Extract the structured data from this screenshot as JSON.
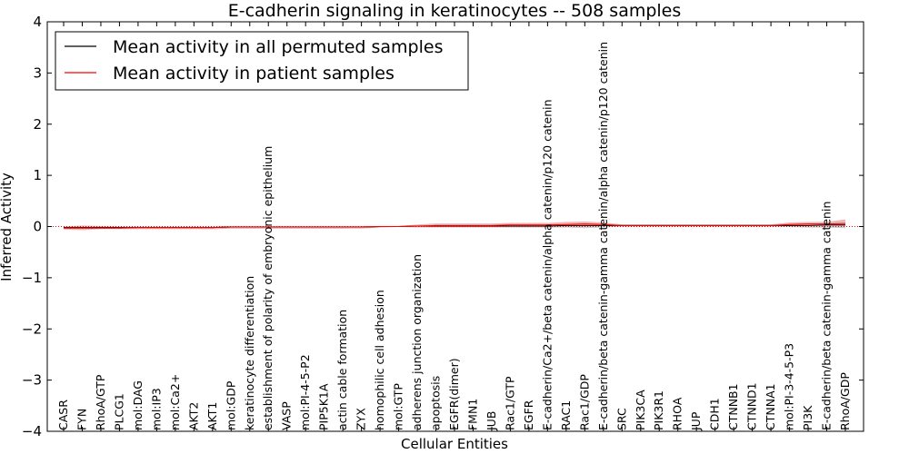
{
  "chart_data": {
    "type": "line",
    "title": "E-cadherin signaling in keratinocytes -- 508 samples",
    "xlabel": "Cellular Entities",
    "ylabel": "Inferred Activity",
    "ylim": [
      -4,
      4
    ],
    "yticks": [
      -4,
      -3,
      -2,
      -1,
      0,
      1,
      2,
      3,
      4
    ],
    "ytick_labels": [
      "−4",
      "−3",
      "−2",
      "−1",
      "0",
      "1",
      "2",
      "3",
      "4"
    ],
    "grid": false,
    "legend_position": "top-left",
    "categories": [
      "CASR",
      "FYN",
      "RhoA/GTP",
      "PLCG1",
      "mol:DAG",
      "mol:IP3",
      "mol:Ca2+",
      "AKT2",
      "AKT1",
      "mol:GDP",
      "keratinocyte differentiation",
      "establishment of polarity of embryonic epithelium",
      "VASP",
      "mol:PI-4-5-P2",
      "PIP5K1A",
      "actin cable formation",
      "ZYX",
      "homophilic cell adhesion",
      "mol:GTP",
      "adherens junction organization",
      "apoptosis",
      "EGFR(dimer)",
      "FMN1",
      "JUB",
      "Rac1/GTP",
      "EGFR",
      "E-cadherin/Ca2+/beta catenin/alpha catenin/p120 catenin",
      "RAC1",
      "Rac1/GDP",
      "E-cadherin/beta catenin-gamma catenin/alpha catenin/p120 catenin",
      "SRC",
      "PIK3CA",
      "PIK3R1",
      "RHOA",
      "JUP",
      "CDH1",
      "CTNNB1",
      "CTNND1",
      "CTNNA1",
      "mol:PI-3-4-5-P3",
      "PI3K",
      "E-cadherin/beta catenin-gamma catenin",
      "RhoA/GDP"
    ],
    "series": [
      {
        "name": "Mean activity in all permuted samples",
        "color": "#000000",
        "values": [
          -0.02,
          -0.02,
          -0.02,
          -0.02,
          -0.02,
          -0.02,
          -0.02,
          -0.02,
          -0.02,
          -0.01,
          -0.01,
          -0.01,
          -0.01,
          -0.01,
          -0.01,
          -0.01,
          -0.01,
          0.0,
          0.0,
          0.01,
          0.01,
          0.01,
          0.01,
          0.01,
          0.01,
          0.01,
          0.01,
          0.02,
          0.02,
          0.02,
          0.02,
          0.02,
          0.02,
          0.02,
          0.02,
          0.02,
          0.02,
          0.02,
          0.02,
          0.02,
          0.02,
          0.03,
          0.03
        ],
        "band_lower": [
          -0.04,
          -0.05,
          -0.04,
          -0.04,
          -0.04,
          -0.04,
          -0.04,
          -0.04,
          -0.05,
          -0.04,
          -0.04,
          -0.04,
          -0.04,
          -0.04,
          -0.04,
          -0.04,
          -0.03,
          -0.01,
          -0.01,
          -0.02,
          -0.02,
          -0.02,
          -0.02,
          -0.02,
          -0.02,
          -0.02,
          -0.02,
          -0.02,
          -0.03,
          -0.02,
          0.0,
          0.0,
          0.0,
          0.0,
          0.0,
          0.0,
          0.0,
          0.0,
          0.0,
          -0.01,
          -0.02,
          -0.02,
          -0.03
        ],
        "band_upper": [
          0.0,
          0.01,
          0.0,
          0.0,
          0.0,
          0.0,
          0.0,
          0.0,
          0.0,
          0.01,
          0.01,
          0.01,
          0.01,
          0.01,
          0.01,
          0.01,
          0.01,
          0.01,
          0.01,
          0.03,
          0.04,
          0.04,
          0.04,
          0.04,
          0.04,
          0.04,
          0.04,
          0.05,
          0.06,
          0.05,
          0.04,
          0.04,
          0.04,
          0.04,
          0.04,
          0.04,
          0.04,
          0.04,
          0.04,
          0.05,
          0.06,
          0.07,
          0.08
        ]
      },
      {
        "name": "Mean activity in patient samples",
        "color": "#ff0000",
        "values": [
          -0.03,
          -0.03,
          -0.03,
          -0.03,
          -0.02,
          -0.02,
          -0.02,
          -0.02,
          -0.02,
          -0.01,
          -0.01,
          -0.01,
          -0.01,
          -0.01,
          -0.01,
          -0.01,
          -0.01,
          0.0,
          0.0,
          0.01,
          0.02,
          0.02,
          0.02,
          0.02,
          0.03,
          0.03,
          0.03,
          0.04,
          0.05,
          0.04,
          0.02,
          0.02,
          0.02,
          0.02,
          0.02,
          0.02,
          0.02,
          0.02,
          0.02,
          0.04,
          0.05,
          0.05,
          0.06
        ],
        "band_lower": [
          -0.06,
          -0.07,
          -0.05,
          -0.05,
          -0.05,
          -0.05,
          -0.05,
          -0.05,
          -0.05,
          -0.04,
          -0.04,
          -0.04,
          -0.04,
          -0.04,
          -0.04,
          -0.04,
          -0.04,
          -0.02,
          -0.01,
          -0.01,
          0.0,
          0.0,
          0.0,
          0.0,
          0.0,
          0.0,
          0.0,
          0.0,
          0.01,
          0.01,
          0.01,
          0.01,
          0.01,
          0.01,
          0.01,
          0.01,
          0.01,
          0.01,
          0.01,
          0.02,
          0.02,
          0.02,
          0.01
        ],
        "band_upper": [
          0.0,
          0.02,
          0.01,
          0.0,
          0.0,
          0.0,
          0.0,
          0.0,
          0.0,
          0.01,
          0.01,
          0.01,
          0.01,
          0.01,
          0.01,
          0.01,
          0.01,
          0.01,
          0.01,
          0.04,
          0.06,
          0.06,
          0.06,
          0.06,
          0.07,
          0.07,
          0.07,
          0.09,
          0.1,
          0.08,
          0.04,
          0.04,
          0.04,
          0.04,
          0.04,
          0.04,
          0.04,
          0.04,
          0.04,
          0.08,
          0.09,
          0.09,
          0.14
        ]
      }
    ],
    "baseline": 0
  },
  "colors": {
    "patient_band": "#f4a6a6",
    "permuted_band": "#bfbfbf",
    "baseline": "#ff0000"
  }
}
